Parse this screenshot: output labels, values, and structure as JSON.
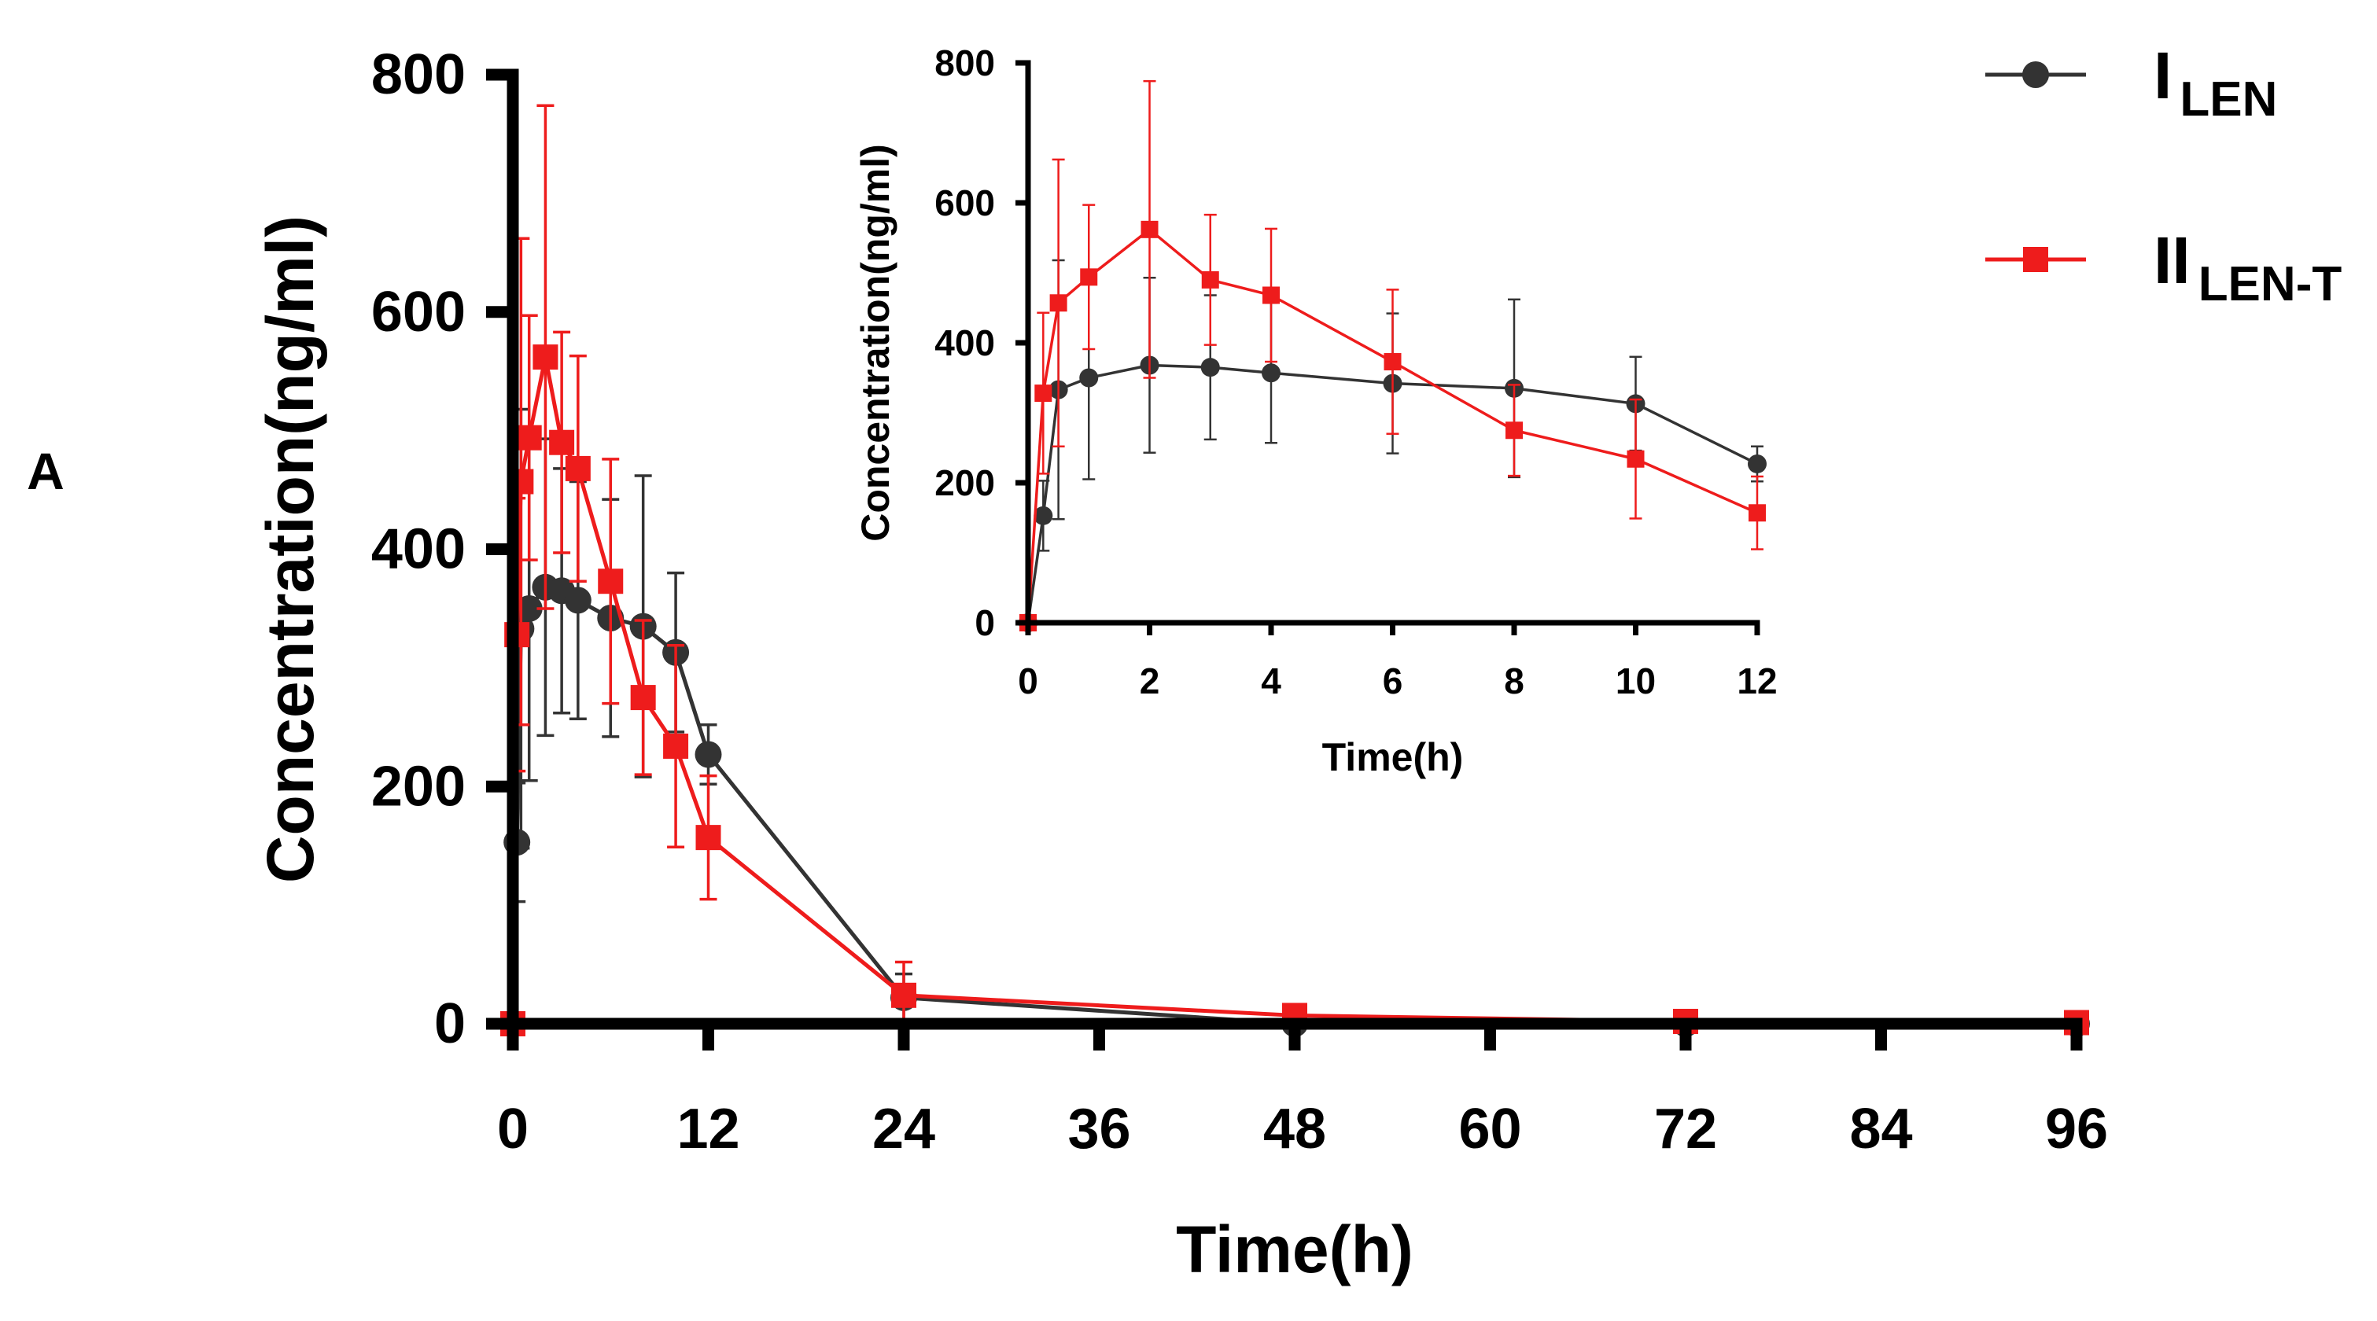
{
  "panel_label": "A",
  "chart_data": [
    {
      "type": "line",
      "role": "main",
      "xlabel": "Time(h)",
      "ylabel": "Concentration(ng/ml)",
      "xlim": [
        0,
        96
      ],
      "ylim": [
        0,
        800
      ],
      "xticks": [
        0,
        12,
        24,
        36,
        48,
        60,
        72,
        84,
        96
      ],
      "yticks": [
        0,
        200,
        400,
        600,
        800
      ],
      "grid": false,
      "legend_position": "top-right",
      "series": [
        {
          "name": "I",
          "name_subscript": "LEN",
          "color": "#333333",
          "marker": "circle",
          "x": [
            0,
            0.25,
            0.5,
            1,
            2,
            3,
            4,
            6,
            8,
            10,
            12,
            24,
            48,
            72,
            96
          ],
          "y": [
            0,
            153,
            333,
            350,
            368,
            365,
            357,
            342,
            335,
            313,
            227,
            22,
            0,
            0,
            0
          ],
          "err": [
            0,
            50,
            185,
            145,
            125,
            103,
            100,
            100,
            127,
            67,
            25,
            20,
            2,
            2,
            2
          ]
        },
        {
          "name": "II",
          "name_subscript": "LEN-T",
          "color": "#ee1c1c",
          "marker": "square",
          "x": [
            0,
            0.25,
            0.5,
            1,
            2,
            3,
            4,
            6,
            8,
            10,
            12,
            24,
            48,
            72,
            96
          ],
          "y": [
            0,
            328,
            457,
            494,
            562,
            490,
            468,
            373,
            275,
            234,
            157,
            24,
            7,
            2,
            1
          ],
          "err": [
            0,
            115,
            205,
            103,
            212,
            93,
            95,
            103,
            65,
            85,
            52,
            28,
            5,
            2,
            1
          ]
        }
      ]
    },
    {
      "type": "line",
      "role": "inset",
      "xlabel": "Time(h)",
      "ylabel": "Concentration(ng/ml)",
      "xlim": [
        0,
        12
      ],
      "ylim": [
        0,
        800
      ],
      "xticks": [
        0,
        2,
        4,
        6,
        8,
        10,
        12
      ],
      "yticks": [
        0,
        200,
        400,
        600,
        800
      ],
      "grid": false,
      "series": [
        {
          "name": "I",
          "name_subscript": "LEN",
          "color": "#333333",
          "marker": "circle",
          "x": [
            0,
            0.25,
            0.5,
            1,
            2,
            3,
            4,
            6,
            8,
            10,
            12
          ],
          "y": [
            0,
            153,
            333,
            350,
            368,
            365,
            357,
            342,
            335,
            313,
            227
          ],
          "err": [
            0,
            50,
            185,
            145,
            125,
            103,
            100,
            100,
            127,
            67,
            25
          ]
        },
        {
          "name": "II",
          "name_subscript": "LEN-T",
          "color": "#ee1c1c",
          "marker": "square",
          "x": [
            0,
            0.25,
            0.5,
            1,
            2,
            3,
            4,
            6,
            8,
            10,
            12
          ],
          "y": [
            0,
            328,
            457,
            494,
            562,
            490,
            468,
            373,
            275,
            234,
            157
          ],
          "err": [
            0,
            115,
            205,
            103,
            212,
            93,
            95,
            103,
            65,
            85,
            52
          ]
        }
      ]
    }
  ]
}
